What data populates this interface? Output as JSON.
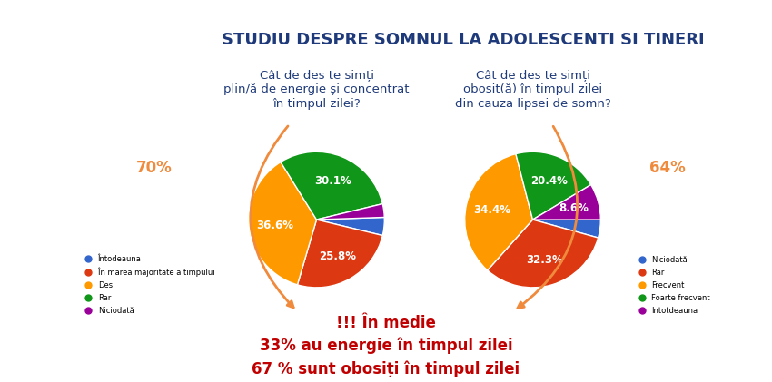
{
  "title": "STUDIU DESPRE SOMNUL LA ADOLESCENTI SI TINERI",
  "footer": [
    "!!! În medie",
    "33% au energie în timpul zilei",
    "67 % sunt obosiți în timpul zilei"
  ],
  "chart_data": [
    {
      "type": "pie",
      "title": "Cât de des te simți\nplin/ă de energie și concentrat\nîn timpul zilei?",
      "annotation": "70%",
      "categories": [
        "Întodeauna",
        "În marea majoritate a timpului",
        "Des",
        "Rar",
        "Niciodată"
      ],
      "values": [
        4.3,
        25.8,
        36.6,
        30.1,
        3.2
      ],
      "value_labels": [
        null,
        "25.8%",
        "36.6%",
        "30.1%",
        null
      ],
      "colors": [
        "#3366cc",
        "#dc3912",
        "#ff9900",
        "#109618",
        "#990099"
      ],
      "data_labels": true,
      "legend": "lower left"
    },
    {
      "type": "pie",
      "title": "Cât de des te simți\nobosit(ă) în timpul zilei\ndin cauza lipsei de somn?",
      "annotation": "64%",
      "categories": [
        "Niciodată",
        "Rar",
        "Frecvent",
        "Foarte frecvent",
        "Intotdeauna"
      ],
      "values": [
        4.3,
        32.3,
        34.4,
        20.4,
        8.6
      ],
      "value_labels": [
        null,
        "32.3%",
        "34.4%",
        "20.4%",
        "8.6%"
      ],
      "colors": [
        "#3366cc",
        "#dc3912",
        "#ff9900",
        "#109618",
        "#990099"
      ],
      "data_labels": true,
      "legend": "lower right"
    }
  ]
}
